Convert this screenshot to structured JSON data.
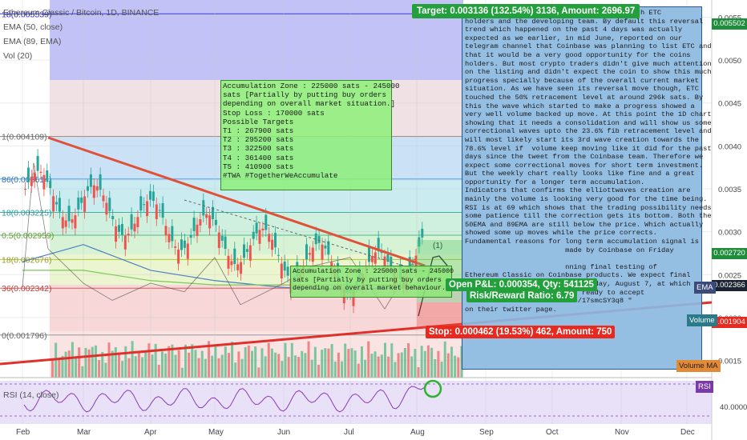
{
  "header": {
    "symbol_title": "Ethereum Classic / Bitcoin, 1D, BINANCE",
    "indicators": [
      "EMA (50, close)",
      "EMA (89, EMA)",
      "Vol (20)"
    ],
    "rsi_label": "RSI (14, close)"
  },
  "fib_labels": [
    "1(0.004109)",
    "86(0.003614)",
    "18(0.003225)",
    "0.5(0.002959)",
    "18(0.002676)",
    "36(0.002342)",
    "0(0.001796)",
    "18(0.005539)"
  ],
  "price_tags": {
    "top": "0.005502",
    "current": "0.002720",
    "ema": "0.002366",
    "stop": "0.001904"
  },
  "side_tags": {
    "ema": "EMA",
    "volume": "Volume",
    "volume_ma": "Volume MA",
    "rsi": "RSI"
  },
  "trade": {
    "target": "Target: 0.003136 (132.54%) 3136, Amount: 2696.97",
    "open_pl": "Open P&L: 0.000354, Qty: 541125",
    "risk_reward": "Risk/Reward Ratio: 6.79",
    "stop": "Stop: 0.000462 (19.53%) 462, Amount: 750",
    "wave_label": "(1)"
  },
  "notes": {
    "main": "Accumulation Zone : 225000 sats - 245000\nsats [Partially by putting buy orders\ndepending on overall market situation.]\nStop Loss : 170000 sats\nPossible Targets\nT1 : 267900 sats\nT2 : 295200 sats\nT3 : 322500 sats\nT4 : 361400 sats\nT5 : 410900 sats\n#TWA #TogetherWeAccumulate",
    "small": "Accumulation Zone : 225000 sats - 245000\nsats [Partially by putting buy orders\ndepending on overall market behaviour.]",
    "analysis": "                                 t for both ETC\nholders and the developing team. By default this reversal\ntrend which happened on the past 4 days was actually\nexpected as we earlier, in mid June, reported on our\ntelegram channel that Coinbase was planning to list ETC and\nthat it would be a very good opportunity for the coins\nholders. But most crypto traders didn't give much attention\non the listing and didn't expect the coin to show this much\nprogress specially because of the overall current market\nsituation. As we have seen its reversal move though, ETC\ntouched the 50% retracement level at around 296k sats. By\nthis the wave which started to make a progress showed a\nvery well volume backed up move. At this point the 1D chart\nshowing that it needs a consolidation and will show us some\ncorrectional waves upto the 23.6% fib retracement level and\nwill most likely start its 3rd wave creation towards the\n78.6% level if  volume keep moving like it did for the past\ndays since the tweet from the Coinbase team. Therefore we\nexpect some correctional moves for short term investment.\nBut the weekly chart really looks like fine and a great\nopportunity for a longer term accumulation.\nIndicators that confirms the elliottwaves creation are\nmainly the volume is looking very good for the time being.\nRSI is at 69 which shows that the trading possibility needs\nsome patience till the correction gets its bottom. Both the\n50EMA and 89EMA are still below the price. Which actually\nshowed some up moves while the price corrects.\nFundamental reasons for long term accumulation signal is\n                        made by Coinbase on Friday\n\n                        nning final testing of\nEthereum Classic on Coinbase products. We expect final\ntesting to be completed by Tuesday, August 7, at which\n                       e're ready to accept\n                        .co/17smcSY3q8 \"\non their twitter page."
  },
  "chart_data": {
    "type": "line",
    "title": "Ethereum Classic / Bitcoin, 1D, BINANCE",
    "xlabel": "",
    "ylabel": "",
    "x_ticks": [
      "Feb",
      "Mar",
      "Apr",
      "May",
      "Jun",
      "Jul",
      "Aug",
      "Sep",
      "Oct",
      "Nov",
      "Dec"
    ],
    "y_ticks": [
      0.0055,
      0.005,
      0.0045,
      0.004,
      0.0035,
      0.003,
      0.0025,
      0.002,
      0.0015
    ],
    "ylim": [
      0.0013,
      0.0057
    ],
    "rsi_ticks": [
      40.0
    ],
    "fib_levels": [
      0.005539,
      0.004109,
      0.003614,
      0.003225,
      0.002959,
      0.002676,
      0.002342,
      0.001796
    ],
    "series": [
      {
        "name": "EMA (50, close)",
        "points": [
          [
            "Feb",
            0.00265
          ],
          [
            "Mar",
            0.00285
          ],
          [
            "Apr",
            0.00255
          ],
          [
            "May",
            0.00243
          ],
          [
            "Jun",
            0.00235
          ],
          [
            "Jul",
            0.00232
          ],
          [
            "Aug",
            0.00236
          ]
        ]
      },
      {
        "name": "EMA (89, EMA)",
        "points": [
          [
            "Feb",
            0.00255
          ],
          [
            "Mar",
            0.00255
          ],
          [
            "Apr",
            0.00243
          ],
          [
            "May",
            0.00238
          ],
          [
            "Jun",
            0.00238
          ],
          [
            "Jul",
            0.00238
          ],
          [
            "Aug",
            0.00238
          ]
        ]
      }
    ],
    "price_path": [
      [
        "Feb",
        0.00235
      ],
      [
        "Feb",
        0.0038
      ],
      [
        "Mar",
        0.0028
      ],
      [
        "Mar",
        0.0024
      ],
      [
        "Apr",
        0.0022
      ],
      [
        "Apr",
        0.0024
      ],
      [
        "May",
        0.0023
      ],
      [
        "May",
        0.0027
      ],
      [
        "Jun",
        0.00215
      ],
      [
        "Jun",
        0.0024
      ],
      [
        "Jul",
        0.0026
      ],
      [
        "Jul",
        0.0027
      ],
      [
        "Aug",
        0.0021
      ],
      [
        "Aug",
        0.00272
      ]
    ],
    "grid": true,
    "legend": "top-left"
  }
}
